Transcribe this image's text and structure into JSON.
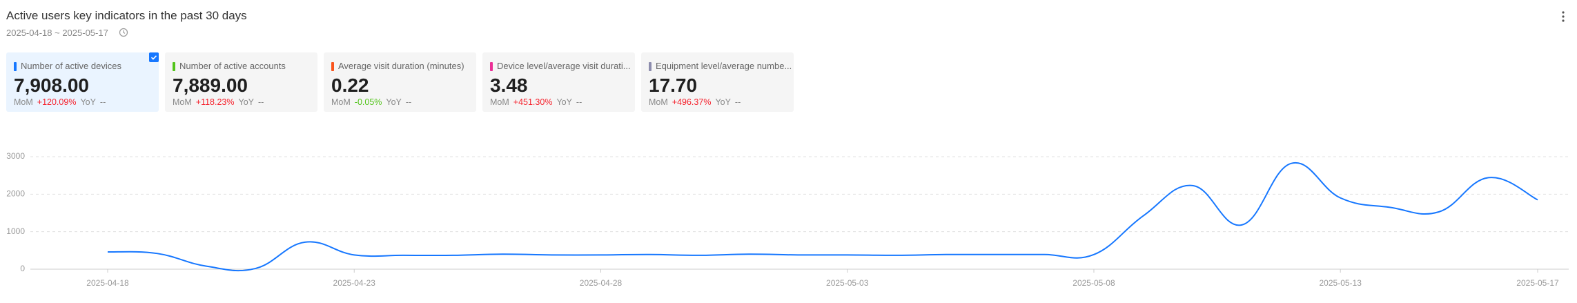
{
  "header": {
    "title": "Active users key indicators in the past 30 days",
    "date_range": "2025-04-18 ~ 2025-05-17"
  },
  "cards": [
    {
      "label": "Number of active devices",
      "value": "7,908.00",
      "mom_label": "MoM",
      "mom": "+120.09%",
      "yoy_label": "YoY",
      "yoy": "--",
      "color": "#1677ff",
      "trend": "up",
      "selected": true
    },
    {
      "label": "Number of active accounts",
      "value": "7,889.00",
      "mom_label": "MoM",
      "mom": "+118.23%",
      "yoy_label": "YoY",
      "yoy": "--",
      "color": "#52c41a",
      "trend": "up",
      "selected": false
    },
    {
      "label": "Average visit duration (minutes)",
      "value": "0.22",
      "mom_label": "MoM",
      "mom": "-0.05%",
      "yoy_label": "YoY",
      "yoy": "--",
      "color": "#fa541c",
      "trend": "down",
      "selected": false
    },
    {
      "label": "Device level/average visit durati...",
      "value": "3.48",
      "mom_label": "MoM",
      "mom": "+451.30%",
      "yoy_label": "YoY",
      "yoy": "--",
      "color": "#eb2f96",
      "trend": "up",
      "selected": false
    },
    {
      "label": "Equipment level/average numbe...",
      "value": "17.70",
      "mom_label": "MoM",
      "mom": "+496.37%",
      "yoy_label": "YoY",
      "yoy": "--",
      "color": "#8c8cad",
      "trend": "up",
      "selected": false
    }
  ],
  "chart_data": {
    "type": "line",
    "categories": [
      "2025-04-18",
      null,
      null,
      null,
      null,
      "2025-04-23",
      null,
      null,
      null,
      null,
      "2025-04-28",
      null,
      null,
      null,
      null,
      "2025-05-03",
      null,
      null,
      null,
      null,
      "2025-05-08",
      null,
      null,
      null,
      null,
      "2025-05-13",
      null,
      null,
      null,
      "2025-05-17"
    ],
    "series": [
      {
        "name": "Number of active devices",
        "color": "#1677ff",
        "values": [
          460,
          420,
          80,
          20,
          720,
          380,
          370,
          370,
          400,
          380,
          380,
          390,
          370,
          400,
          380,
          380,
          370,
          390,
          390,
          390,
          390,
          1420,
          2230,
          1180,
          2820,
          1900,
          1650,
          1530,
          2440,
          1850
        ]
      }
    ],
    "ylim": [
      0,
      3000
    ],
    "yticks": [
      0,
      1000,
      2000,
      3000
    ],
    "grid": true
  }
}
